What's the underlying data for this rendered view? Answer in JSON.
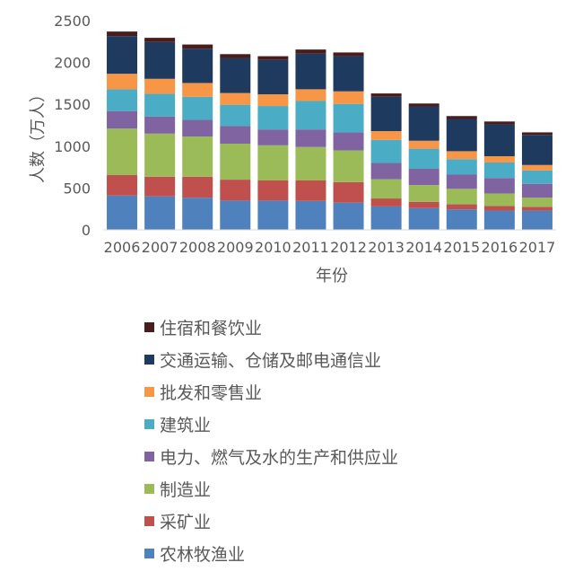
{
  "chart_data": {
    "type": "bar",
    "stacked": true,
    "title": "",
    "xlabel": "年份",
    "ylabel": "人数（万人）",
    "ylim": [
      0,
      2500
    ],
    "y_ticks": [
      0,
      500,
      1000,
      1500,
      2000,
      2500
    ],
    "grid": false,
    "legend_position": "bottom",
    "categories": [
      "2006",
      "2007",
      "2008",
      "2009",
      "2010",
      "2011",
      "2012",
      "2013",
      "2014",
      "2015",
      "2016",
      "2017"
    ],
    "series": [
      {
        "name": "农林牧渔业",
        "color": "#4f81bd",
        "values": [
          410,
          400,
          385,
          350,
          350,
          345,
          325,
          280,
          260,
          245,
          230,
          230
        ]
      },
      {
        "name": "采矿业",
        "color": "#c0504d",
        "values": [
          245,
          235,
          250,
          250,
          240,
          245,
          245,
          95,
          75,
          60,
          55,
          45
        ]
      },
      {
        "name": "制造业",
        "color": "#9bbb59",
        "values": [
          555,
          515,
          480,
          430,
          420,
          400,
          380,
          230,
          200,
          185,
          150,
          110
        ]
      },
      {
        "name": "电力、燃气及水的生产和供应业",
        "color": "#8064a2",
        "values": [
          210,
          205,
          200,
          210,
          190,
          210,
          215,
          195,
          195,
          170,
          185,
          165
        ]
      },
      {
        "name": "建筑业",
        "color": "#4bacc6",
        "values": [
          260,
          270,
          275,
          255,
          280,
          340,
          340,
          275,
          240,
          185,
          185,
          160
        ]
      },
      {
        "name": "批发和零售业",
        "color": "#f79646",
        "values": [
          185,
          180,
          165,
          140,
          140,
          140,
          150,
          105,
          95,
          95,
          75,
          65
        ]
      },
      {
        "name": "交通运输、仓储及邮电通信业",
        "color": "#1f3a5f",
        "values": [
          450,
          440,
          410,
          415,
          410,
          425,
          420,
          410,
          410,
          385,
          380,
          360
        ]
      },
      {
        "name": "住宿和餐饮业",
        "color": "#4a1d1d",
        "values": [
          55,
          50,
          50,
          50,
          45,
          50,
          45,
          40,
          35,
          35,
          35,
          30
        ]
      }
    ]
  }
}
